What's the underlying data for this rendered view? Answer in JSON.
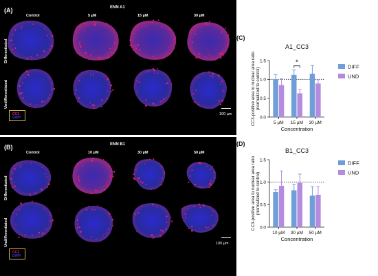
{
  "panel_a": {
    "letter": "(A)",
    "treatment": "ENN A1",
    "columns": [
      "Control",
      "5 µM",
      "15 µM",
      "30 µM"
    ],
    "rows": [
      "Differentiated",
      "Undifferentiated"
    ],
    "scale_label": "100 µm",
    "legend": {
      "line1": "CC3",
      "line2": "DAPI"
    }
  },
  "panel_b": {
    "letter": "(B)",
    "treatment": "ENN B1",
    "columns": [
      "Control",
      "10 µM",
      "30 µM",
      "50 µM"
    ],
    "rows": [
      "Differentiated",
      "Undifferentiated"
    ],
    "scale_label": "100 µm",
    "legend": {
      "line1": "CC3",
      "line2": "DAPI"
    }
  },
  "colors": {
    "diff": "#6f9ed8",
    "und": "#b58be0",
    "nucleus": "#2a2a9e",
    "cc3": "#e0206a",
    "legend_border": "#d4b64a"
  },
  "chart_data": [
    {
      "letter": "(C)",
      "type": "bar",
      "title": "A1_CC3",
      "xlabel": "Concentration",
      "ylabel": "CC3-positive area to nuclear area ratio",
      "ylabel2": "(normalized to control)",
      "categories": [
        "5 µM",
        "15 µM",
        "30 µM"
      ],
      "ylim": [
        0,
        1.5
      ],
      "yticks": [
        "0.0",
        "0.5",
        "1.0",
        "1.5"
      ],
      "reference_line": 1.0,
      "significance": {
        "category": "15 µM",
        "label": "*"
      },
      "series": [
        {
          "name": "DIFF",
          "values": [
            1.0,
            1.12,
            1.15
          ],
          "errors": [
            0.13,
            0.13,
            0.22
          ]
        },
        {
          "name": "UND",
          "values": [
            0.85,
            0.63,
            0.89
          ],
          "errors": [
            0.17,
            0.1,
            0.1
          ]
        }
      ]
    },
    {
      "letter": "(D)",
      "type": "bar",
      "title": "B1_CC3",
      "xlabel": "Concentration",
      "ylabel": "CC3-positive area to nuclear area ratio",
      "ylabel2": "(normalized to control)",
      "categories": [
        "10 µM",
        "30 µM",
        "50 µM"
      ],
      "ylim": [
        0,
        1.5
      ],
      "yticks": [
        "0.0",
        "0.5",
        "1.0",
        "1.5"
      ],
      "reference_line": 1.0,
      "series": [
        {
          "name": "DIFF",
          "values": [
            0.78,
            0.82,
            0.7
          ],
          "errors": [
            0.05,
            0.13,
            0.2
          ]
        },
        {
          "name": "UND",
          "values": [
            0.92,
            0.98,
            0.72
          ],
          "errors": [
            0.33,
            0.2,
            0.18
          ]
        }
      ]
    }
  ]
}
